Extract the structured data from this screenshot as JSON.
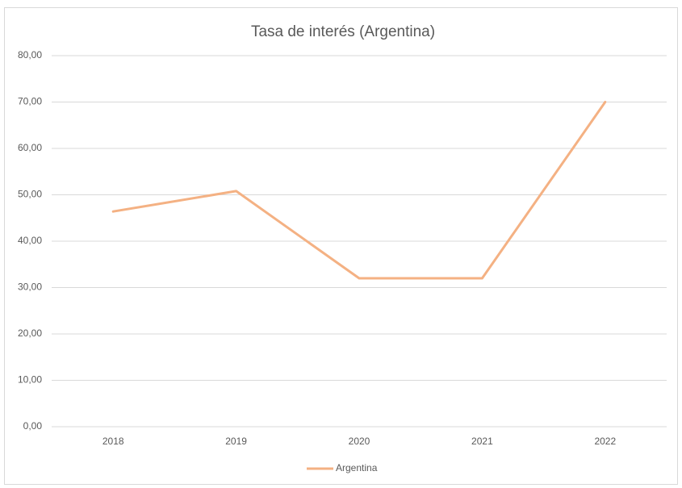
{
  "chart_data": {
    "type": "line",
    "title": "Tasa de interés (Argentina)",
    "categories": [
      "2018",
      "2019",
      "2020",
      "2021",
      "2022"
    ],
    "series": [
      {
        "name": "Argentina",
        "color": "#f4b183",
        "values": [
          46.4,
          50.8,
          32,
          32,
          70
        ]
      }
    ],
    "ylim": [
      0,
      80
    ],
    "yticks": [
      {
        "value": 0,
        "label": "0,00"
      },
      {
        "value": 10,
        "label": "10,00"
      },
      {
        "value": 20,
        "label": "20,00"
      },
      {
        "value": 30,
        "label": "30,00"
      },
      {
        "value": 40,
        "label": "40,00"
      },
      {
        "value": 50,
        "label": "50,00"
      },
      {
        "value": 60,
        "label": "60,00"
      },
      {
        "value": 70,
        "label": "70,00"
      },
      {
        "value": 80,
        "label": "80,00"
      }
    ],
    "grid": true,
    "legend": "bottom"
  }
}
